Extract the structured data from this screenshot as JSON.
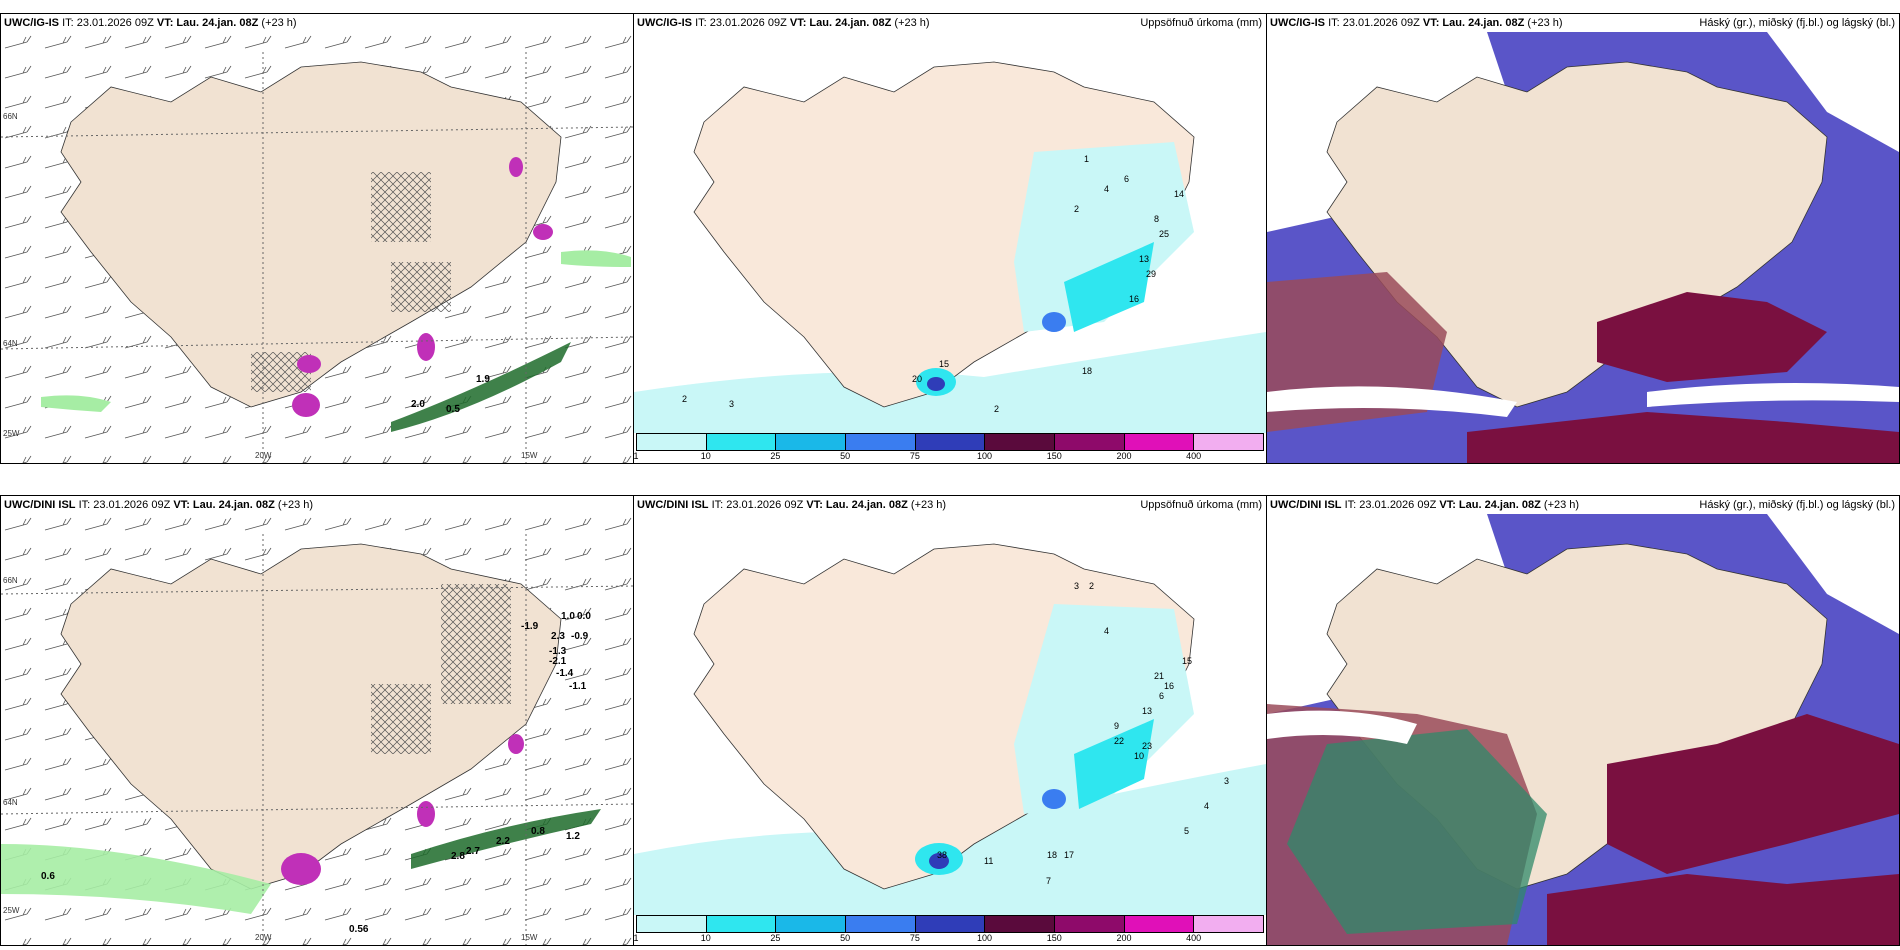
{
  "panels": [
    {
      "model": "UWC/IG-IS",
      "it": "IT: 23.01.2026 09Z",
      "vt_label": "VT:",
      "vt": "Lau. 24.jan. 08Z",
      "lead": "(+23 h)",
      "title": ""
    },
    {
      "model": "UWC/IG-IS",
      "it": "IT: 23.01.2026 09Z",
      "vt_label": "VT:",
      "vt": "Lau. 24.jan. 08Z",
      "lead": "(+23 h)",
      "title": "Uppsöfnuð úrkoma (mm)"
    },
    {
      "model": "UWC/IG-IS",
      "it": "IT: 23.01.2026 09Z",
      "vt_label": "VT:",
      "vt": "Lau. 24.jan. 08Z",
      "lead": "(+23 h)",
      "title": "Háský (gr.), miðský (fj.bl.) og lágský (bl.)"
    },
    {
      "model": "UWC/DINI ISL",
      "it": "IT: 23.01.2026 09Z",
      "vt_label": "VT:",
      "vt": "Lau. 24.jan. 08Z",
      "lead": "(+23 h)",
      "title": ""
    },
    {
      "model": "UWC/DINI ISL",
      "it": "IT: 23.01.2026 09Z",
      "vt_label": "VT:",
      "vt": "Lau. 24.jan. 08Z",
      "lead": "(+23 h)",
      "title": "Uppsöfnuð úrkoma (mm)"
    },
    {
      "model": "UWC/DINI ISL",
      "it": "IT: 23.01.2026 09Z",
      "vt_label": "VT:",
      "vt": "Lau. 24.jan. 08Z",
      "lead": "(+23 h)",
      "title": "Háský (gr.), miðský (fj.bl.) og lágský (bl.)"
    }
  ],
  "axis_labels": {
    "lat66": "66N",
    "lat64": "64N",
    "lon25": "25W",
    "lon20": "20W",
    "lon15": "15W"
  },
  "legend": {
    "colors": [
      "#c9f7f7",
      "#2fe6ef",
      "#1ab8e8",
      "#3a7df0",
      "#2f3db8",
      "#5a0a3c",
      "#8e0a6a",
      "#e010b8",
      "#f2aef0"
    ],
    "ticks": [
      "1",
      "10",
      "25",
      "50",
      "75",
      "100",
      "150",
      "200",
      "400"
    ]
  },
  "top_wind_labels": [
    "2.0",
    "0.5",
    "1.9"
  ],
  "bottom_wind_labels": [
    "-1.9",
    "-1.3",
    "-2.1",
    "-1.4",
    "-1.1",
    "1.0",
    "0.0",
    "-0.9",
    "2.3",
    "2.2",
    "2.7",
    "2.8",
    "0.8",
    "1.2",
    "0.6",
    "0.56"
  ],
  "precip_top_labels": [
    "2",
    "4",
    "1",
    "6",
    "8",
    "10",
    "14",
    "25",
    "3",
    "13",
    "29",
    "16",
    "15",
    "23",
    "7",
    "2",
    "5",
    "15",
    "18",
    "20",
    "10",
    "16",
    "1",
    "3",
    "2"
  ],
  "precip_bottom_labels": [
    "3",
    "2",
    "4",
    "6",
    "15",
    "21",
    "16",
    "13",
    "9",
    "10",
    "23",
    "38",
    "22",
    "18",
    "17",
    "7",
    "11",
    "5",
    "4",
    "3"
  ]
}
